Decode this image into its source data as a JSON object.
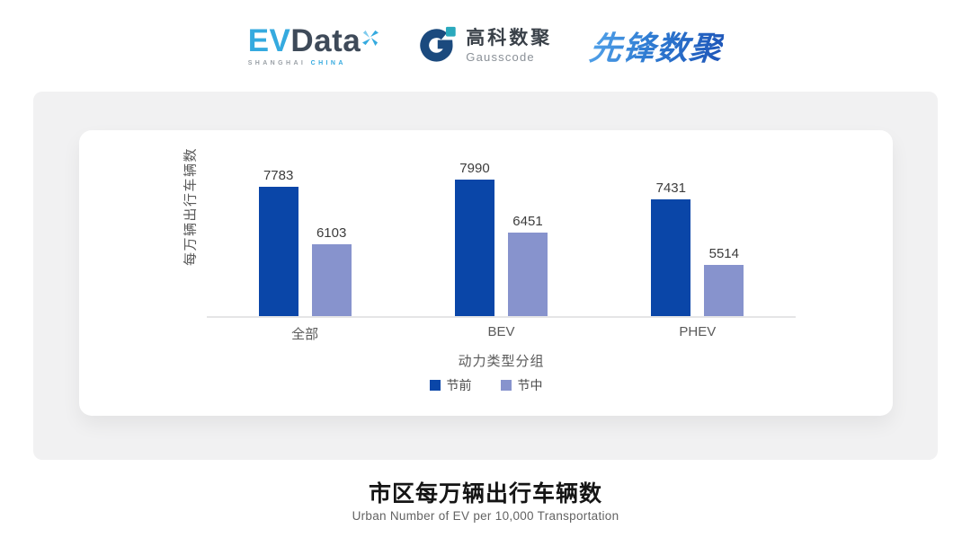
{
  "header": {
    "evdata_logo": {
      "ev": "EV",
      "data": "Data",
      "sub_left": "SHANGHAI",
      "sub_right": "CHINA"
    },
    "gausscode_logo": {
      "cn": "高科数聚",
      "en": "Gausscode"
    },
    "xianfeng_logo": {
      "text": "先锋数聚"
    }
  },
  "chart_data": {
    "type": "bar",
    "categories": [
      "全部",
      "BEV",
      "PHEV"
    ],
    "series": [
      {
        "name": "节前",
        "color": "#0A46A8",
        "values": [
          7783,
          7990,
          7431
        ]
      },
      {
        "name": "节中",
        "color": "#8793CD",
        "values": [
          6103,
          6451,
          5514
        ]
      }
    ],
    "xlabel": "动力类型分组",
    "ylabel": "每万辆出行车辆数",
    "ylim": [
      4000,
      9000
    ],
    "grid": false,
    "legend_position": "bottom",
    "value_labels": true
  },
  "footer": {
    "title": "市区每万辆出行车辆数",
    "subtitle": "Urban Number of EV per 10,000 Transportation"
  },
  "colors": {
    "pre_holiday": "#0A46A8",
    "mid_holiday": "#8793CD",
    "panel_bg": "#F1F1F2",
    "evdata_light_blue": "#35AADF",
    "evdata_dark": "#3E4A59",
    "gauss_dark": "#1B4A7E",
    "gauss_teal": "#2AA9BD",
    "axis_line": "#E5E5E6"
  }
}
